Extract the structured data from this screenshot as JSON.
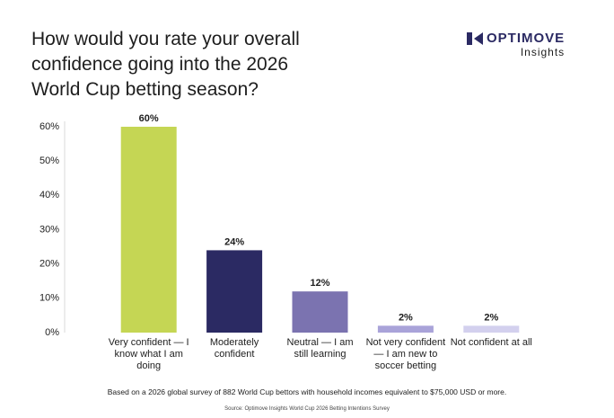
{
  "brand": {
    "name": "OPTIMOVE",
    "sub": "Insights"
  },
  "chart_data": {
    "type": "bar",
    "title": "How would you rate your overall confidence going into the 2026 World Cup betting season?",
    "categories": [
      "Very confident — I know what I am doing",
      "Moderately confident",
      "Neutral — I am still learning",
      "Not very confident — I am new to soccer betting",
      "Not confident at all"
    ],
    "values": [
      60,
      24,
      12,
      2,
      2
    ],
    "value_labels": [
      "60%",
      "24%",
      "12%",
      "2%",
      "2%"
    ],
    "colors": [
      "#c5d654",
      "#2b2a63",
      "#7b73b0",
      "#a9a3d9",
      "#d3d0ee"
    ],
    "ylim": [
      0,
      60
    ],
    "yticks": [
      {
        "value": 0,
        "label": "0%"
      },
      {
        "value": 10,
        "label": "10%"
      },
      {
        "value": 20,
        "label": "20%"
      },
      {
        "value": 30,
        "label": "30%"
      },
      {
        "value": 40,
        "label": "40%"
      },
      {
        "value": 50,
        "label": "50%"
      },
      {
        "value": 60,
        "label": "60%"
      }
    ],
    "grid": false,
    "note": "Based on a 2026 global survey of 882 World Cup bettors with household incomes equivalent to $75,000 USD or more.",
    "source": "Source: Optimove Insights World Cup 2026 Betting Intentions Survey"
  }
}
